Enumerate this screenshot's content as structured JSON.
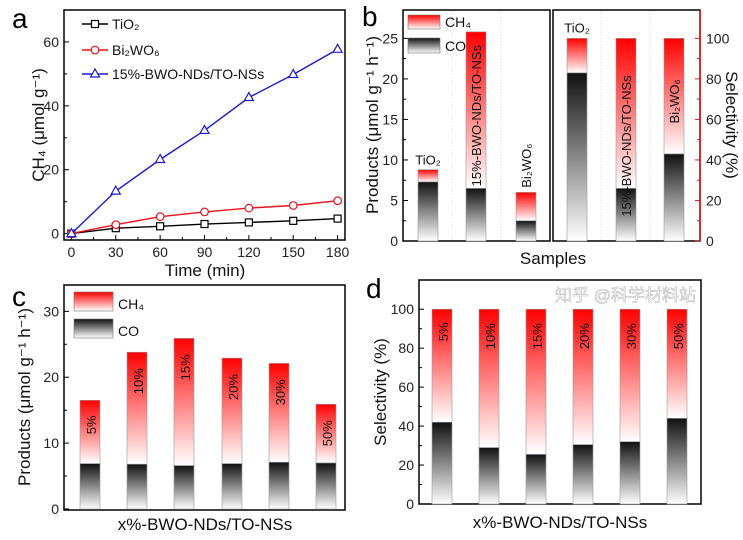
{
  "watermark": "知乎 @科学材料站",
  "chart_data": [
    {
      "panel": "a",
      "type": "line",
      "xlabel": "Time (min)",
      "ylabel": "CH₄ (μmol g⁻¹)",
      "x": [
        0,
        30,
        60,
        90,
        120,
        150,
        180
      ],
      "xticks": [
        0,
        30,
        60,
        90,
        120,
        150,
        180
      ],
      "yticks": [
        0,
        20,
        40,
        60
      ],
      "xlim": [
        -5,
        185
      ],
      "ylim": [
        -2,
        70
      ],
      "legend_position": "top-left",
      "series": [
        {
          "name": "TiO₂",
          "color": "#000000",
          "marker": "square",
          "values": [
            0,
            1.7,
            2.3,
            3.0,
            3.5,
            4.0,
            4.7
          ]
        },
        {
          "name": "Bi₂WO₆",
          "color": "#e8141c",
          "marker": "circle",
          "values": [
            0,
            2.8,
            5.3,
            6.8,
            8.0,
            8.8,
            10.3
          ]
        },
        {
          "name": "15%-BWO-NDs/TO-NSs",
          "color": "#1a1acb",
          "marker": "triangle",
          "values": [
            0,
            13.3,
            23.2,
            32.3,
            42.6,
            49.8,
            57.7
          ]
        }
      ]
    },
    {
      "panel": "b",
      "type": "bar",
      "stacked": true,
      "xlabel": "Samples",
      "ylabel": "Products (μmol g⁻¹ h⁻¹)",
      "ylabel_right": "Selectivity (%)",
      "right_axis_color": "#e8141c",
      "categories": [
        "TiO₂",
        "15%-BWO-NDs/TO-NSs",
        "Bi₂WO₆"
      ],
      "legend": [
        "CH₄",
        "CO"
      ],
      "yticks": [
        0,
        5,
        10,
        15,
        20,
        25
      ],
      "ylim": [
        0,
        28.5
      ],
      "yticks_right": [
        0,
        20,
        40,
        60,
        80,
        100
      ],
      "ylim_right": [
        0,
        114
      ],
      "products": {
        "CO": [
          7.3,
          6.5,
          2.5
        ],
        "CH4": [
          1.5,
          19.3,
          3.5
        ]
      },
      "selectivity": {
        "CO": [
          83,
          26,
          43
        ],
        "CH4": [
          17,
          74,
          57
        ]
      }
    },
    {
      "panel": "c",
      "type": "bar",
      "stacked": true,
      "xlabel": "x%-BWO-NDs/TO-NSs",
      "ylabel": "Products (μmol g⁻¹ h⁻¹)",
      "categories": [
        "5%",
        "10%",
        "15%",
        "20%",
        "30%",
        "50%"
      ],
      "legend": [
        "CH₄",
        "CO"
      ],
      "yticks": [
        0,
        10,
        20,
        30
      ],
      "ylim": [
        0,
        34
      ],
      "series": [
        {
          "name": "CO",
          "values": [
            6.9,
            6.8,
            6.6,
            6.9,
            7.1,
            7.0
          ]
        },
        {
          "name": "CH₄",
          "values": [
            9.6,
            17.0,
            19.3,
            16.0,
            15.0,
            8.9
          ]
        }
      ]
    },
    {
      "panel": "d",
      "type": "bar",
      "stacked": true,
      "xlabel": "x%-BWO-NDs/TO-NSs",
      "ylabel": "Selectivity (%)",
      "categories": [
        "5%",
        "10%",
        "15%",
        "20%",
        "30%",
        "50%"
      ],
      "yticks": [
        0,
        20,
        40,
        60,
        80,
        100
      ],
      "ylim": [
        0,
        115
      ],
      "series": [
        {
          "name": "CO",
          "values": [
            42,
            29,
            25.5,
            30.5,
            32,
            44
          ]
        },
        {
          "name": "CH₄",
          "values": [
            58,
            71,
            74.5,
            69.5,
            68,
            56
          ]
        }
      ]
    }
  ]
}
